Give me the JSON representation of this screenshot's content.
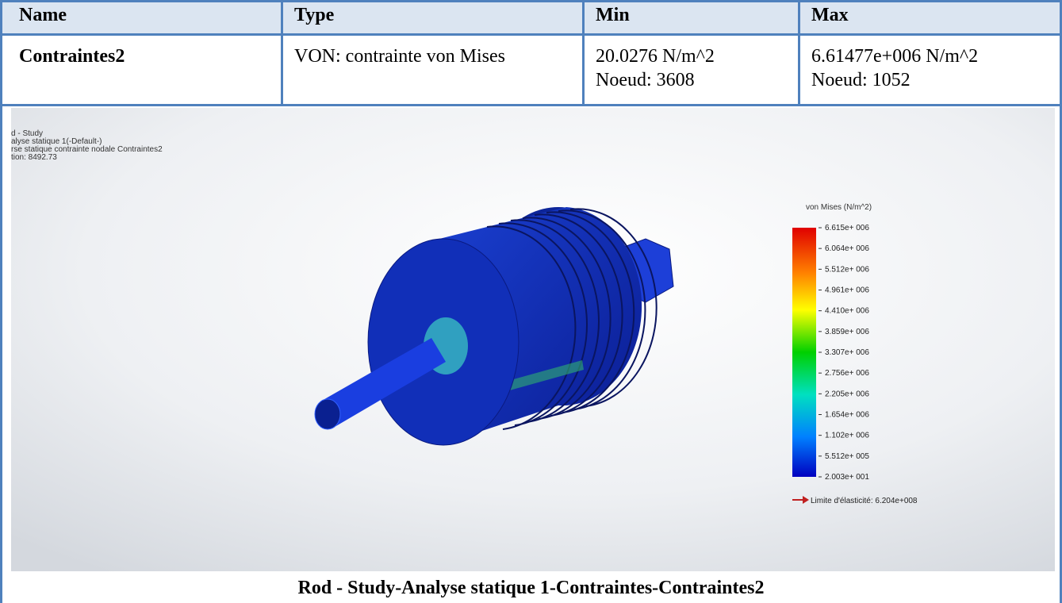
{
  "table": {
    "header": [
      "Name",
      "Type",
      "Min",
      "Max"
    ],
    "rows": [
      [
        [
          "Contraintes2"
        ],
        [
          "VON: contrainte von Mises"
        ],
        [
          "20.0276 N/m^2",
          "Noeud: 3608"
        ],
        [
          "6.61477e+006 N/m^2",
          "Noeud: 1052"
        ]
      ]
    ]
  },
  "image": {
    "info": [
      "d - Study",
      "alyse statique 1(-Default-)",
      "rse statique contrainte nodale Contraintes2",
      "tion: 8492.73"
    ],
    "legend": {
      "title": "von Mises (N/m^2)",
      "ticks": [
        "6.615e+ 006",
        "6.064e+ 006",
        "5.512e+ 006",
        "4.961e+ 006",
        "4.410e+ 006",
        "3.859e+ 006",
        "3.307e+ 006",
        "2.756e+ 006",
        "2.205e+ 006",
        "1.654e+ 006",
        "1.102e+ 006",
        "5.512e+ 005",
        "2.003e+ 001"
      ],
      "yield": "Limite d'élasticité: 6.204e+008"
    }
  },
  "caption": "Rod - Study-Analyse statique 1-Contraintes-Contraintes2"
}
